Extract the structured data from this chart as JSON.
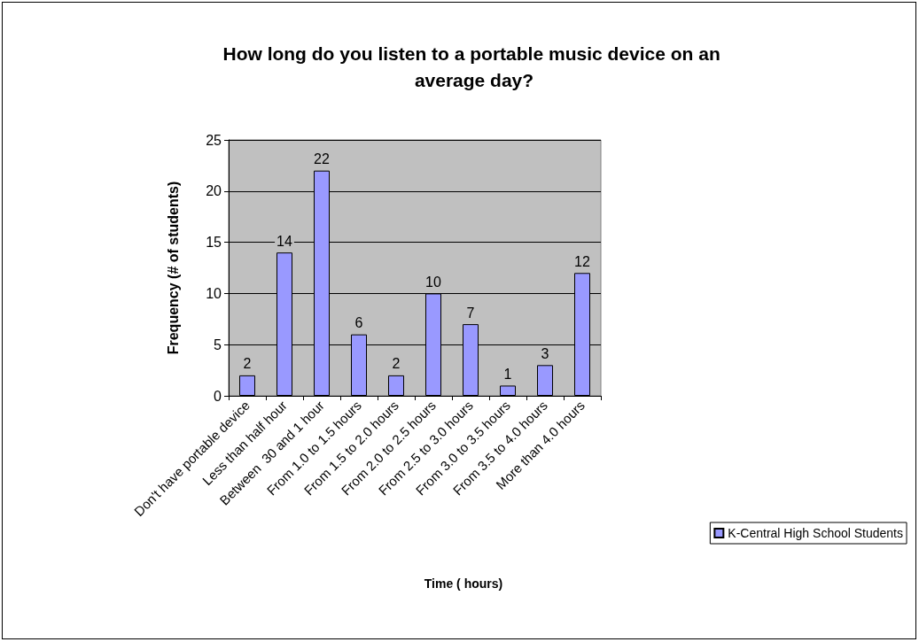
{
  "chart_data": {
    "type": "bar",
    "title": "How long do you listen to a portable music device on an average day?",
    "xlabel": "Time ( hours)",
    "ylabel": "Frequency (# of students)",
    "categories": [
      "Don't have portable device",
      "Less than half hour",
      "Between  30 and 1 hour",
      "From 1.0 to 1.5 hours",
      "From 1.5 to 2.0 hours",
      "From 2.0 to 2.5 hours",
      "From 2.5 to 3.0 hours",
      "From 3.0 to 3.5 hours",
      "From 3.5 to 4.0 hours",
      "More than 4.0 hours"
    ],
    "series": [
      {
        "name": "K-Central High School Students",
        "color": "#9999ff",
        "values": [
          2,
          14,
          22,
          6,
          2,
          10,
          7,
          1,
          3,
          12
        ]
      }
    ],
    "ylim": [
      0,
      25
    ],
    "yticks": [
      0,
      5,
      10,
      15,
      20,
      25
    ],
    "grid": "y",
    "legend": "right",
    "data_labels": true
  }
}
